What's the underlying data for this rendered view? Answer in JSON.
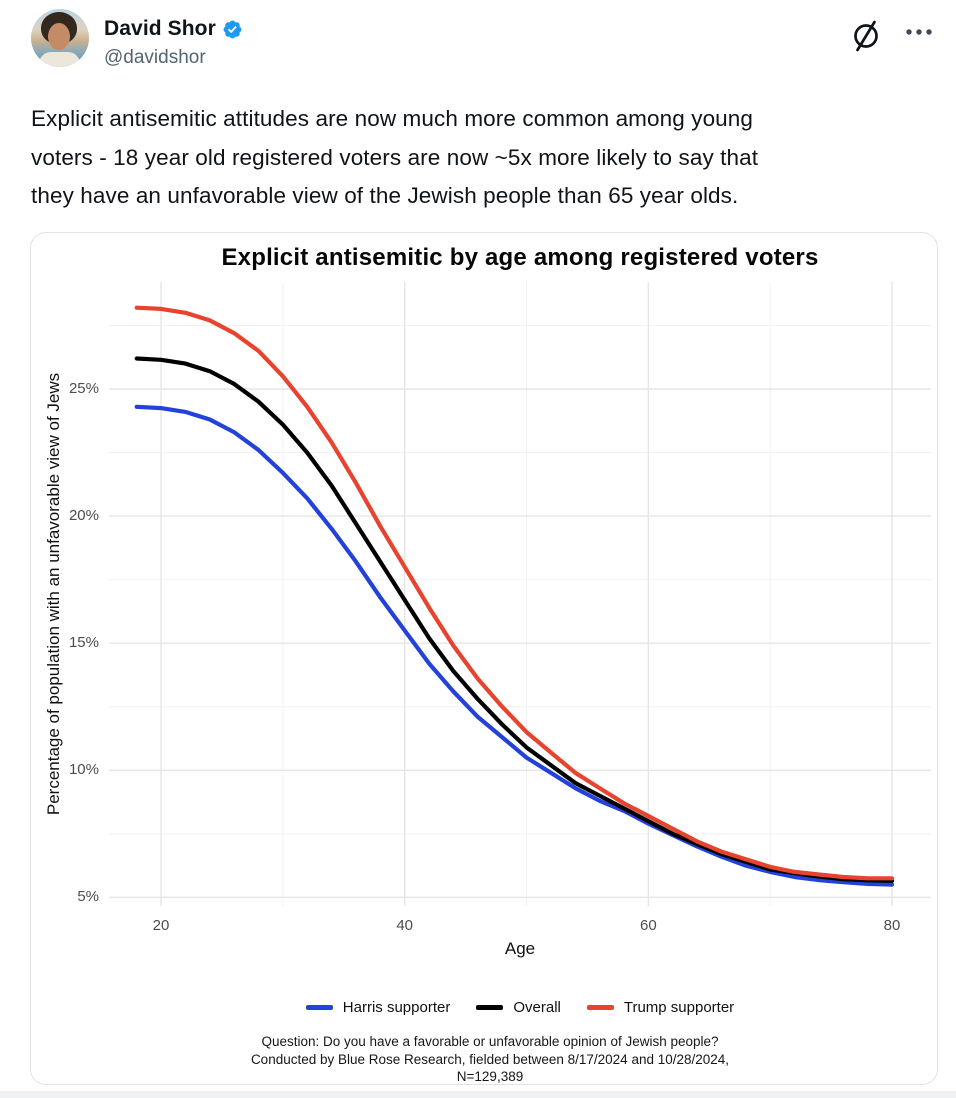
{
  "header": {
    "name": "David Shor",
    "handle": "@davidshor",
    "verified_color": "#1d9bf0",
    "icons": [
      "avatar",
      "verified-badge-icon",
      "circle-slash-icon",
      "more-icon"
    ],
    "icon_color": "#0f1419",
    "more_color": "#3c4a59"
  },
  "tweet": {
    "lines": [
      "Explicit antisemitic attitudes are now much more common among young",
      "voters - 18 year old registered voters are now ~5x more likely to say that",
      "they have an unfavorable view of the Jewish people than 65 year olds."
    ]
  },
  "chart_data": {
    "type": "line",
    "title": "Explicit antisemitic by age among registered voters",
    "xlabel": "Age",
    "ylabel": "Percentage of population with an unfavorable view of Jews",
    "x": [
      18,
      20,
      22,
      24,
      26,
      28,
      30,
      32,
      34,
      36,
      38,
      40,
      42,
      44,
      46,
      48,
      50,
      52,
      54,
      56,
      58,
      60,
      62,
      64,
      66,
      68,
      70,
      72,
      74,
      76,
      78,
      80
    ],
    "series": [
      {
        "name": "Harris supporter",
        "color": "#2342d9",
        "values": [
          24.3,
          24.25,
          24.1,
          23.8,
          23.3,
          22.6,
          21.7,
          20.7,
          19.5,
          18.2,
          16.8,
          15.5,
          14.2,
          13.1,
          12.1,
          11.3,
          10.5,
          9.9,
          9.3,
          8.8,
          8.4,
          7.9,
          7.45,
          7.0,
          6.6,
          6.25,
          6.0,
          5.8,
          5.68,
          5.6,
          5.53,
          5.5
        ]
      },
      {
        "name": "Overall",
        "color": "#000000",
        "values": [
          26.2,
          26.15,
          26.0,
          25.7,
          25.2,
          24.5,
          23.6,
          22.5,
          21.2,
          19.7,
          18.2,
          16.7,
          15.2,
          13.9,
          12.8,
          11.8,
          10.9,
          10.2,
          9.5,
          9.0,
          8.5,
          8.0,
          7.5,
          7.1,
          6.7,
          6.4,
          6.1,
          5.95,
          5.82,
          5.72,
          5.67,
          5.65
        ]
      },
      {
        "name": "Trump supporter",
        "color": "#e8432e",
        "values": [
          28.2,
          28.15,
          28.0,
          27.7,
          27.2,
          26.5,
          25.5,
          24.3,
          22.9,
          21.3,
          19.6,
          18.0,
          16.4,
          14.9,
          13.6,
          12.5,
          11.5,
          10.7,
          9.9,
          9.3,
          8.7,
          8.2,
          7.7,
          7.2,
          6.8,
          6.5,
          6.2,
          6.0,
          5.9,
          5.8,
          5.75,
          5.75
        ]
      }
    ],
    "xlim": [
      15.73,
      83.2
    ],
    "ylim": [
      4.66,
      29.21
    ],
    "x_ticks": [
      {
        "v": 20,
        "label": "20"
      },
      {
        "v": 40,
        "label": "40"
      },
      {
        "v": 60,
        "label": "60"
      },
      {
        "v": 80,
        "label": "80"
      }
    ],
    "y_ticks": [
      {
        "v": 5,
        "label": "5%"
      },
      {
        "v": 10,
        "label": "10%"
      },
      {
        "v": 15,
        "label": "15%"
      },
      {
        "v": 20,
        "label": "20%"
      },
      {
        "v": 25,
        "label": "25%"
      }
    ],
    "x_minor": [
      30,
      50,
      70
    ],
    "y_minor": [
      7.5,
      12.5,
      17.5,
      22.5,
      27.5
    ],
    "grid": true,
    "grid_major_color": "#e6e6e6",
    "grid_minor_color": "#f2f2f2",
    "legend_position": "bottom",
    "caption_lines": [
      "Question: Do you have a favorable or unfavorable opinion of Jewish people?",
      "Conducted by Blue Rose Research, fielded between 8/17/2024 and 10/28/2024,",
      "N=129,389"
    ]
  }
}
